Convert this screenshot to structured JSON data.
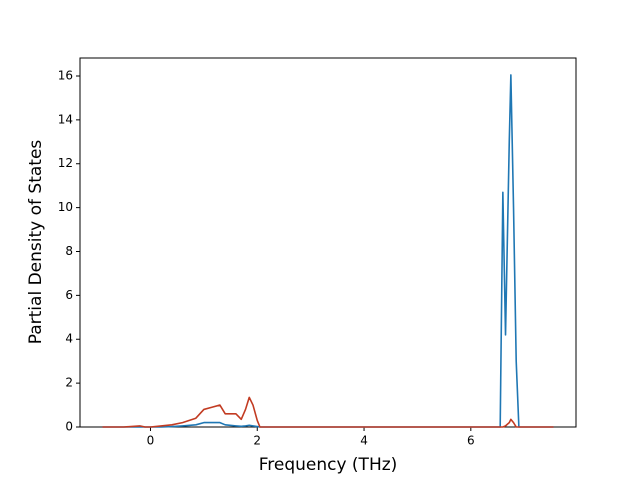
{
  "chart_data": {
    "type": "line",
    "xlabel": "Frequency (THz)",
    "ylabel": "Partial Density of States",
    "x": [
      -0.9,
      -0.5,
      -0.2,
      -0.1,
      0,
      0.2,
      0.4,
      0.6,
      0.85,
      1.0,
      1.15,
      1.3,
      1.4,
      1.6,
      1.7,
      1.78,
      1.85,
      1.92,
      2.0,
      2.05,
      3,
      4,
      5,
      6,
      6.55,
      6.6,
      6.65,
      6.72,
      6.75,
      6.8,
      6.85,
      6.9,
      7.2,
      7.55
    ],
    "series": [
      {
        "color": "#1f77b4",
        "values": [
          0,
          0,
          0,
          0,
          0,
          0,
          0.02,
          0.05,
          0.1,
          0.2,
          0.2,
          0.2,
          0.1,
          0.05,
          0.03,
          0.05,
          0.08,
          0.05,
          0.02,
          0,
          0,
          0,
          0,
          0,
          0,
          10.7,
          4.2,
          13,
          16.05,
          10,
          3,
          0,
          0,
          0
        ]
      },
      {
        "color": "#c23b22",
        "values": [
          0,
          0,
          0.05,
          0,
          0,
          0.05,
          0.1,
          0.2,
          0.4,
          0.8,
          0.9,
          1.0,
          0.6,
          0.6,
          0.35,
          0.8,
          1.35,
          1.0,
          0.3,
          0,
          0,
          0,
          0,
          0,
          0,
          0,
          0.05,
          0.2,
          0.35,
          0.2,
          0,
          0,
          0,
          0
        ]
      }
    ],
    "xlim": [
      -1.32,
      7.97
    ],
    "xticks": [
      0,
      2,
      4,
      6
    ],
    "ylim": [
      0,
      16.82
    ],
    "yticks": [
      0,
      2,
      4,
      6,
      8,
      10,
      12,
      14,
      16
    ]
  }
}
